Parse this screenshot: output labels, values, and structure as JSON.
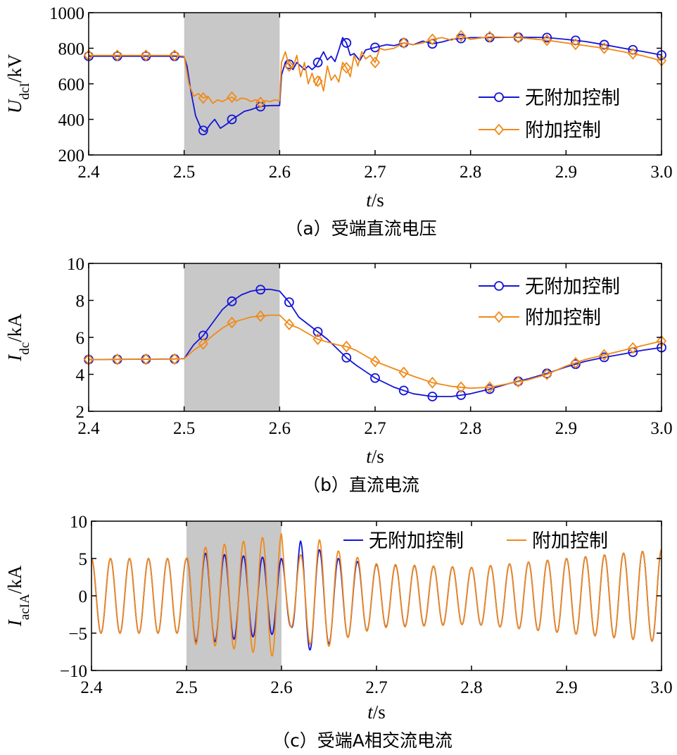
{
  "colors": {
    "no_control": "#1515d6",
    "with_control": "#f08a18",
    "shade": "#c8c8c8"
  },
  "chart_data": [
    {
      "type": "line",
      "panel": "a",
      "caption": "（a）受端直流电压",
      "ylabel_main": "U",
      "ylabel_sub": "dcI",
      "ylabel_unit": "/kV",
      "xlabel_main": "t",
      "xlabel_unit": "/s",
      "xlim": [
        2.4,
        3.0
      ],
      "ylim": [
        200,
        1000
      ],
      "xticks": [
        2.4,
        2.5,
        2.6,
        2.7,
        2.8,
        2.9,
        3.0
      ],
      "xtick_labels": [
        "2.4",
        "2.5",
        "2.6",
        "2.7",
        "2.8",
        "2.9",
        "3.0"
      ],
      "yticks": [
        200,
        400,
        600,
        800,
        1000
      ],
      "ytick_labels": [
        "200",
        "400",
        "600",
        "800",
        "1000"
      ],
      "shaded_region": [
        2.5,
        2.6
      ],
      "legend_position": "right",
      "series": [
        {
          "name": "无附加控制",
          "marker": "circle",
          "x": [
            2.4,
            2.49,
            2.5,
            2.503,
            2.507,
            2.512,
            2.518,
            2.522,
            2.527,
            2.532,
            2.538,
            2.545,
            2.55,
            2.556,
            2.563,
            2.57,
            2.578,
            2.585,
            2.592,
            2.6,
            2.602,
            2.606,
            2.61,
            2.614,
            2.618,
            2.622,
            2.626,
            2.63,
            2.634,
            2.638,
            2.642,
            2.646,
            2.65,
            2.654,
            2.658,
            2.662,
            2.666,
            2.67,
            2.674,
            2.678,
            2.684,
            2.69,
            2.697,
            2.704,
            2.712,
            2.72,
            2.73,
            2.74,
            2.75,
            2.76,
            2.77,
            2.78,
            2.79,
            2.8,
            2.82,
            2.85,
            2.88,
            2.9,
            2.92,
            2.94,
            2.96,
            2.98,
            3.0
          ],
          "y": [
            755,
            755,
            750,
            700,
            560,
            420,
            345,
            330,
            370,
            400,
            350,
            375,
            400,
            420,
            445,
            455,
            470,
            476,
            478,
            478,
            650,
            720,
            710,
            680,
            720,
            700,
            680,
            700,
            680,
            700,
            740,
            780,
            735,
            755,
            725,
            790,
            860,
            830,
            760,
            770,
            730,
            790,
            800,
            810,
            820,
            815,
            830,
            820,
            840,
            825,
            835,
            850,
            855,
            860,
            860,
            862,
            860,
            850,
            838,
            820,
            800,
            782,
            762
          ],
          "markers_x": [
            2.4,
            2.43,
            2.46,
            2.49,
            2.52,
            2.55,
            2.58,
            2.61,
            2.64,
            2.67,
            2.7,
            2.73,
            2.76,
            2.79,
            2.82,
            2.85,
            2.88,
            2.91,
            2.94,
            2.97,
            3.0
          ]
        },
        {
          "name": "附加控制",
          "marker": "diamond",
          "x": [
            2.4,
            2.49,
            2.5,
            2.505,
            2.51,
            2.515,
            2.52,
            2.525,
            2.53,
            2.535,
            2.54,
            2.545,
            2.55,
            2.555,
            2.56,
            2.565,
            2.57,
            2.575,
            2.58,
            2.585,
            2.59,
            2.595,
            2.6,
            2.602,
            2.606,
            2.61,
            2.614,
            2.618,
            2.622,
            2.626,
            2.63,
            2.634,
            2.638,
            2.642,
            2.646,
            2.65,
            2.654,
            2.658,
            2.662,
            2.666,
            2.67,
            2.674,
            2.678,
            2.682,
            2.686,
            2.69,
            2.695,
            2.7,
            2.705,
            2.71,
            2.72,
            2.73,
            2.74,
            2.75,
            2.76,
            2.77,
            2.78,
            2.79,
            2.8,
            2.82,
            2.85,
            2.88,
            2.9,
            2.92,
            2.94,
            2.96,
            2.98,
            3.0
          ],
          "y": [
            760,
            760,
            755,
            600,
            530,
            545,
            520,
            530,
            490,
            510,
            500,
            515,
            525,
            505,
            520,
            515,
            500,
            510,
            495,
            505,
            500,
            510,
            505,
            720,
            780,
            700,
            690,
            760,
            640,
            720,
            600,
            660,
            590,
            640,
            560,
            700,
            620,
            650,
            610,
            720,
            690,
            640,
            760,
            700,
            780,
            740,
            760,
            720,
            800,
            790,
            800,
            830,
            820,
            830,
            850,
            860,
            845,
            870,
            850,
            865,
            860,
            845,
            830,
            815,
            800,
            780,
            758,
            730
          ],
          "markers_x": [
            2.4,
            2.43,
            2.46,
            2.49,
            2.52,
            2.55,
            2.58,
            2.61,
            2.64,
            2.67,
            2.7,
            2.73,
            2.76,
            2.79,
            2.82,
            2.85,
            2.88,
            2.91,
            2.94,
            2.97,
            3.0
          ]
        }
      ]
    },
    {
      "type": "line",
      "panel": "b",
      "caption": "（b）直流电流",
      "ylabel_main": "I",
      "ylabel_sub": "dc",
      "ylabel_unit": "/kA",
      "xlabel_main": "t",
      "xlabel_unit": "/s",
      "xlim": [
        2.4,
        3.0
      ],
      "ylim": [
        2,
        10
      ],
      "xticks": [
        2.4,
        2.5,
        2.6,
        2.7,
        2.8,
        2.9,
        3.0
      ],
      "xtick_labels": [
        "2.4",
        "2.5",
        "2.6",
        "2.7",
        "2.8",
        "2.9",
        "3.0"
      ],
      "yticks": [
        2,
        4,
        6,
        8,
        10
      ],
      "ytick_labels": [
        "2",
        "4",
        "6",
        "8",
        "10"
      ],
      "shaded_region": [
        2.5,
        2.6
      ],
      "legend_position": "top-right",
      "series": [
        {
          "name": "无附加控制",
          "marker": "circle",
          "x": [
            2.4,
            2.49,
            2.5,
            2.51,
            2.52,
            2.53,
            2.54,
            2.55,
            2.56,
            2.57,
            2.58,
            2.59,
            2.6,
            2.61,
            2.62,
            2.63,
            2.64,
            2.65,
            2.66,
            2.67,
            2.68,
            2.69,
            2.7,
            2.72,
            2.74,
            2.76,
            2.78,
            2.8,
            2.82,
            2.84,
            2.86,
            2.88,
            2.9,
            2.92,
            2.94,
            2.96,
            2.98,
            3.0
          ],
          "y": [
            4.8,
            4.83,
            4.85,
            5.6,
            6.1,
            6.8,
            7.5,
            7.95,
            8.3,
            8.5,
            8.58,
            8.6,
            8.5,
            7.9,
            7.1,
            6.7,
            6.3,
            5.9,
            5.4,
            4.9,
            4.5,
            4.15,
            3.8,
            3.3,
            2.95,
            2.8,
            2.8,
            2.95,
            3.2,
            3.5,
            3.75,
            4.05,
            4.4,
            4.7,
            4.92,
            5.1,
            5.3,
            5.45
          ],
          "markers_x": [
            2.4,
            2.43,
            2.46,
            2.49,
            2.52,
            2.55,
            2.58,
            2.61,
            2.64,
            2.67,
            2.7,
            2.73,
            2.76,
            2.79,
            2.82,
            2.85,
            2.88,
            2.91,
            2.94,
            2.97,
            3.0
          ]
        },
        {
          "name": "附加控制",
          "marker": "diamond",
          "x": [
            2.4,
            2.49,
            2.5,
            2.51,
            2.52,
            2.53,
            2.54,
            2.55,
            2.56,
            2.57,
            2.58,
            2.59,
            2.6,
            2.61,
            2.62,
            2.63,
            2.64,
            2.65,
            2.66,
            2.67,
            2.68,
            2.69,
            2.7,
            2.72,
            2.74,
            2.76,
            2.78,
            2.8,
            2.82,
            2.84,
            2.86,
            2.88,
            2.9,
            2.92,
            2.94,
            2.96,
            2.98,
            3.0
          ],
          "y": [
            4.8,
            4.83,
            4.85,
            5.3,
            5.65,
            6.1,
            6.5,
            6.8,
            6.95,
            7.1,
            7.15,
            7.2,
            7.2,
            6.7,
            6.5,
            6.2,
            5.9,
            5.75,
            5.6,
            5.5,
            5.3,
            5.0,
            4.7,
            4.3,
            3.9,
            3.55,
            3.35,
            3.25,
            3.3,
            3.5,
            3.7,
            4.0,
            4.45,
            4.8,
            5.05,
            5.3,
            5.55,
            5.8
          ],
          "markers_x": [
            2.4,
            2.43,
            2.46,
            2.49,
            2.52,
            2.55,
            2.58,
            2.61,
            2.64,
            2.67,
            2.7,
            2.73,
            2.76,
            2.79,
            2.82,
            2.85,
            2.88,
            2.91,
            2.94,
            2.97,
            3.0
          ]
        }
      ]
    },
    {
      "type": "line",
      "panel": "c",
      "caption": "（c）受端A相交流电流",
      "ylabel_main": "I",
      "ylabel_sub": "acIA",
      "ylabel_unit": "/kA",
      "xlabel_main": "t",
      "xlabel_unit": "/s",
      "xlim": [
        2.4,
        3.0
      ],
      "ylim": [
        -10,
        10
      ],
      "xticks": [
        2.4,
        2.5,
        2.6,
        2.7,
        2.8,
        2.9,
        3.0
      ],
      "xtick_labels": [
        "2.4",
        "2.5",
        "2.6",
        "2.7",
        "2.8",
        "2.9",
        "3.0"
      ],
      "yticks": [
        -10,
        -5,
        0,
        5,
        10
      ],
      "ytick_labels": [
        "−10",
        "−5",
        "0",
        "5",
        "10"
      ],
      "shaded_region": [
        2.5,
        2.6
      ],
      "legend_position": "top",
      "frequency_hz": 50,
      "series": [
        {
          "name": "无附加控制",
          "amp_t": [
            2.4,
            2.5,
            2.505,
            2.52,
            2.56,
            2.6,
            2.61,
            2.62,
            2.64,
            2.66,
            2.7,
            2.8,
            2.9,
            3.0
          ],
          "amp": [
            5,
            5,
            6,
            6,
            5.5,
            5,
            4,
            7.5,
            6.5,
            5.5,
            4.2,
            3.8,
            5,
            6.2
          ],
          "offset_t": [
            2.4,
            2.5,
            2.52,
            2.6,
            2.66,
            2.7,
            3.0
          ],
          "offset": [
            0,
            0,
            -0.3,
            0,
            -0.5,
            0,
            0
          ]
        },
        {
          "name": "附加控制",
          "amp_t": [
            2.4,
            2.5,
            2.505,
            2.52,
            2.56,
            2.6,
            2.605,
            2.62,
            2.64,
            2.66,
            2.7,
            2.8,
            2.9,
            3.0
          ],
          "amp": [
            5,
            5,
            6.5,
            6.5,
            7.3,
            8.3,
            3.5,
            5.5,
            7.5,
            6,
            4.3,
            3.8,
            5,
            6.2
          ],
          "offset_t": [
            2.4,
            3.0
          ],
          "offset": [
            0,
            0
          ]
        }
      ]
    }
  ]
}
